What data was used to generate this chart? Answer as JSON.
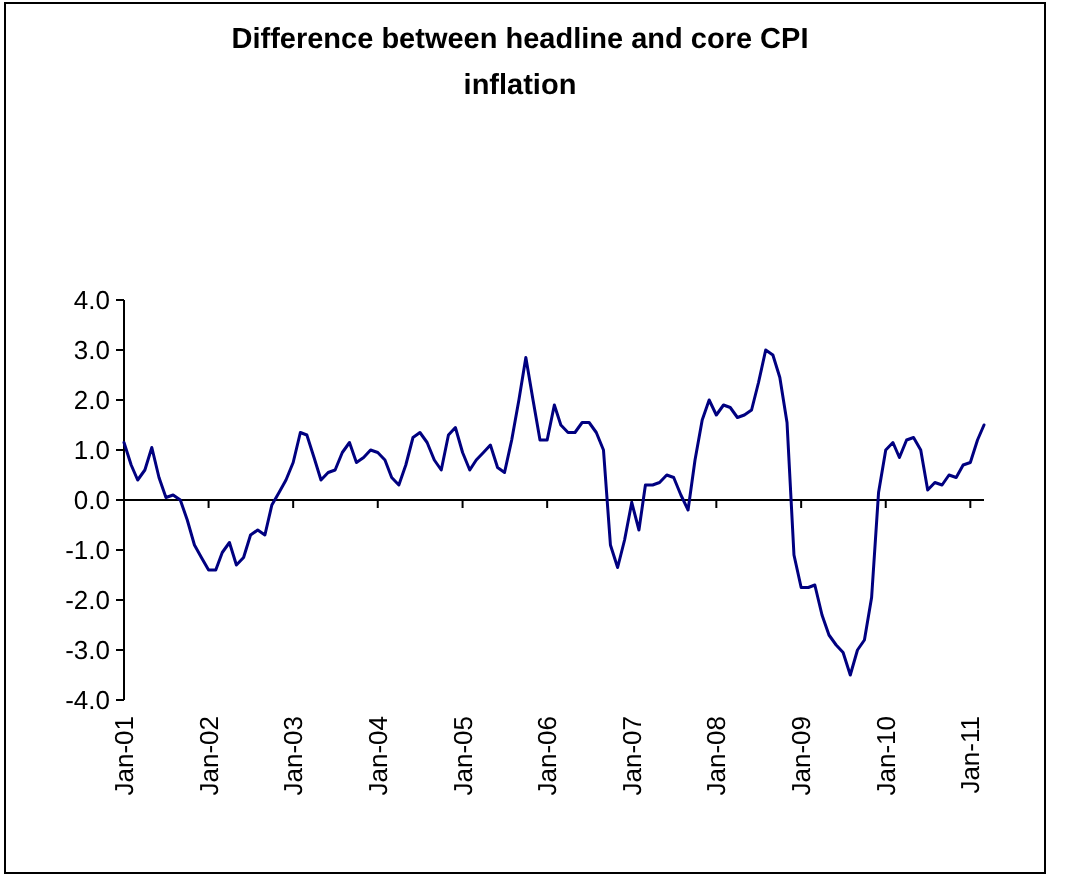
{
  "chart_data": {
    "type": "line",
    "title": "Difference between headline and core CPI inflation",
    "x": [
      "2001-01",
      "2001-02",
      "2001-03",
      "2001-04",
      "2001-05",
      "2001-06",
      "2001-07",
      "2001-08",
      "2001-09",
      "2001-10",
      "2001-11",
      "2001-12",
      "2002-01",
      "2002-02",
      "2002-03",
      "2002-04",
      "2002-05",
      "2002-06",
      "2002-07",
      "2002-08",
      "2002-09",
      "2002-10",
      "2002-11",
      "2002-12",
      "2003-01",
      "2003-02",
      "2003-03",
      "2003-04",
      "2003-05",
      "2003-06",
      "2003-07",
      "2003-08",
      "2003-09",
      "2003-10",
      "2003-11",
      "2003-12",
      "2004-01",
      "2004-02",
      "2004-03",
      "2004-04",
      "2004-05",
      "2004-06",
      "2004-07",
      "2004-08",
      "2004-09",
      "2004-10",
      "2004-11",
      "2004-12",
      "2005-01",
      "2005-02",
      "2005-03",
      "2005-04",
      "2005-05",
      "2005-06",
      "2005-07",
      "2005-08",
      "2005-09",
      "2005-10",
      "2005-11",
      "2005-12",
      "2006-01",
      "2006-02",
      "2006-03",
      "2006-04",
      "2006-05",
      "2006-06",
      "2006-07",
      "2006-08",
      "2006-09",
      "2006-10",
      "2006-11",
      "2006-12",
      "2007-01",
      "2007-02",
      "2007-03",
      "2007-04",
      "2007-05",
      "2007-06",
      "2007-07",
      "2007-08",
      "2007-09",
      "2007-10",
      "2007-11",
      "2007-12",
      "2008-01",
      "2008-02",
      "2008-03",
      "2008-04",
      "2008-05",
      "2008-06",
      "2008-07",
      "2008-08",
      "2008-09",
      "2008-10",
      "2008-11",
      "2008-12",
      "2009-01",
      "2009-02",
      "2009-03",
      "2009-04",
      "2009-05",
      "2009-06",
      "2009-07",
      "2009-08",
      "2009-09",
      "2009-10",
      "2009-11",
      "2009-12",
      "2010-01",
      "2010-02",
      "2010-03",
      "2010-04",
      "2010-05",
      "2010-06",
      "2010-07",
      "2010-08",
      "2010-09",
      "2010-10",
      "2010-11",
      "2010-12",
      "2011-01",
      "2011-02",
      "2011-03"
    ],
    "xlim": [
      "2001-01",
      "2011-03"
    ],
    "xticks": [
      {
        "value": "2001-01",
        "label": "Jan-01"
      },
      {
        "value": "2002-01",
        "label": "Jan-02"
      },
      {
        "value": "2003-01",
        "label": "Jan-03"
      },
      {
        "value": "2004-01",
        "label": "Jan-04"
      },
      {
        "value": "2005-01",
        "label": "Jan-05"
      },
      {
        "value": "2006-01",
        "label": "Jan-06"
      },
      {
        "value": "2007-01",
        "label": "Jan-07"
      },
      {
        "value": "2008-01",
        "label": "Jan-08"
      },
      {
        "value": "2009-01",
        "label": "Jan-09"
      },
      {
        "value": "2010-01",
        "label": "Jan-10"
      },
      {
        "value": "2011-01",
        "label": "Jan-11"
      }
    ],
    "ylim": [
      -4,
      4
    ],
    "yticks": [
      {
        "value": -4,
        "label": "-4.0"
      },
      {
        "value": -3,
        "label": "-3.0"
      },
      {
        "value": -2,
        "label": "-2.0"
      },
      {
        "value": -1,
        "label": "-1.0"
      },
      {
        "value": 0,
        "label": "0.0"
      },
      {
        "value": 1,
        "label": "1.0"
      },
      {
        "value": 2,
        "label": "2.0"
      },
      {
        "value": 3,
        "label": "3.0"
      },
      {
        "value": 4,
        "label": "4.0"
      }
    ],
    "marker": "none",
    "line_style": "solid",
    "series": [
      {
        "color": "#000080",
        "values": [
          1.15,
          0.7,
          0.4,
          0.6,
          1.05,
          0.45,
          0.05,
          0.1,
          0.0,
          -0.4,
          -0.9,
          -1.15,
          -1.4,
          -1.4,
          -1.05,
          -0.85,
          -1.3,
          -1.15,
          -0.7,
          -0.6,
          -0.7,
          -0.1,
          0.15,
          0.4,
          0.75,
          1.35,
          1.3,
          0.85,
          0.4,
          0.55,
          0.6,
          0.95,
          1.15,
          0.75,
          0.85,
          1.0,
          0.95,
          0.8,
          0.45,
          0.3,
          0.7,
          1.25,
          1.35,
          1.15,
          0.8,
          0.6,
          1.3,
          1.45,
          0.95,
          0.6,
          0.8,
          0.95,
          1.1,
          0.65,
          0.55,
          1.2,
          2.0,
          2.85,
          2.0,
          1.2,
          1.2,
          1.9,
          1.5,
          1.35,
          1.35,
          1.55,
          1.55,
          1.35,
          1.0,
          -0.9,
          -1.35,
          -0.8,
          -0.05,
          -0.6,
          0.3,
          0.3,
          0.35,
          0.5,
          0.45,
          0.1,
          -0.2,
          0.8,
          1.6,
          2.0,
          1.7,
          1.9,
          1.85,
          1.65,
          1.7,
          1.8,
          2.35,
          3.0,
          2.9,
          2.45,
          1.55,
          -1.1,
          -1.75,
          -1.75,
          -1.7,
          -2.3,
          -2.7,
          -2.9,
          -3.05,
          -3.5,
          -3.0,
          -2.8,
          -1.95,
          0.15,
          1.0,
          1.15,
          0.85,
          1.2,
          1.25,
          1.0,
          0.2,
          0.35,
          0.3,
          0.5,
          0.45,
          0.7,
          0.75,
          1.2,
          1.5
        ]
      }
    ]
  }
}
